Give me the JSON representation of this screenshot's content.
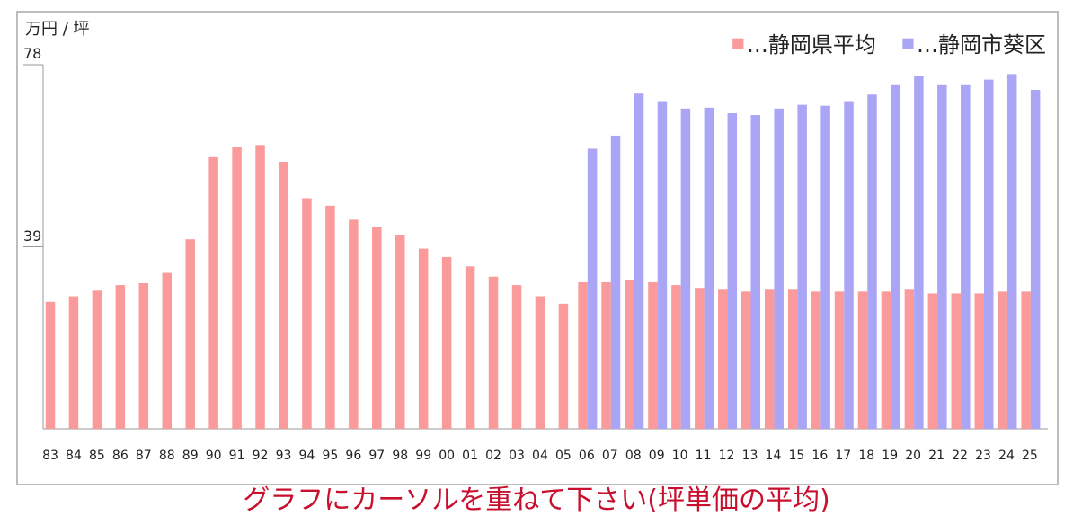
{
  "unit_label": "万円 / 坪",
  "caption": "グラフにカーソルを重ねて下さい(坪単価の平均)",
  "colors": {
    "series_a": "#fb9a9a",
    "series_b": "#aaa6f5",
    "axis": "#999999",
    "frame": "#bdbdbd"
  },
  "chart_data": {
    "type": "bar",
    "title": "",
    "xlabel": "",
    "ylabel": "万円 / 坪",
    "ylim": [
      0,
      78
    ],
    "yticks": [
      39,
      78
    ],
    "grid": false,
    "legend_position": "top-right",
    "categories": [
      "83",
      "84",
      "85",
      "86",
      "87",
      "88",
      "89",
      "90",
      "91",
      "92",
      "93",
      "94",
      "95",
      "96",
      "97",
      "98",
      "99",
      "00",
      "01",
      "02",
      "03",
      "04",
      "05",
      "06",
      "07",
      "08",
      "09",
      "10",
      "11",
      "12",
      "13",
      "14",
      "15",
      "16",
      "17",
      "18",
      "19",
      "20",
      "21",
      "22",
      "23",
      "24",
      "25"
    ],
    "series": [
      {
        "name": "…静岡県平均",
        "color": "#fb9a9a",
        "values": [
          27.2,
          28.4,
          29.6,
          30.8,
          31.2,
          33.4,
          40.6,
          58.2,
          60.4,
          60.8,
          57.2,
          49.4,
          47.8,
          44.8,
          43.2,
          41.6,
          38.6,
          36.8,
          34.8,
          32.6,
          30.8,
          28.4,
          26.8,
          31.4,
          31.4,
          31.8,
          31.4,
          30.8,
          30.2,
          29.8,
          29.4,
          29.8,
          29.8,
          29.4,
          29.4,
          29.4,
          29.4,
          29.8,
          29.0,
          29.0,
          29.0,
          29.4,
          29.4
        ]
      },
      {
        "name": "…静岡市葵区",
        "color": "#aaa6f5",
        "values": [
          null,
          null,
          null,
          null,
          null,
          null,
          null,
          null,
          null,
          null,
          null,
          null,
          null,
          null,
          null,
          null,
          null,
          null,
          null,
          null,
          null,
          null,
          null,
          60.0,
          62.8,
          71.8,
          70.2,
          68.6,
          68.8,
          67.6,
          67.2,
          68.6,
          69.4,
          69.2,
          70.2,
          71.6,
          73.8,
          75.6,
          73.8,
          73.8,
          74.8,
          76.0,
          72.6
        ]
      }
    ]
  }
}
